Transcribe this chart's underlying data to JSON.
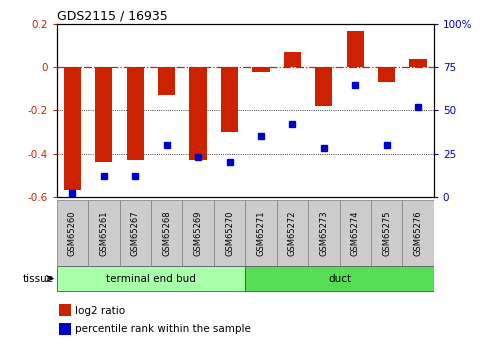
{
  "title": "GDS2115 / 16935",
  "samples": [
    "GSM65260",
    "GSM65261",
    "GSM65267",
    "GSM65268",
    "GSM65269",
    "GSM65270",
    "GSM65271",
    "GSM65272",
    "GSM65273",
    "GSM65274",
    "GSM65275",
    "GSM65276"
  ],
  "log2_ratio": [
    -0.57,
    -0.44,
    -0.43,
    -0.13,
    -0.43,
    -0.3,
    -0.02,
    0.07,
    -0.18,
    0.17,
    -0.07,
    0.04
  ],
  "percentile": [
    2,
    12,
    12,
    30,
    23,
    20,
    35,
    42,
    28,
    65,
    30,
    52
  ],
  "groups": [
    {
      "label": "terminal end bud",
      "start": 0,
      "end": 6,
      "color": "#AAFFAA"
    },
    {
      "label": "duct",
      "start": 6,
      "end": 12,
      "color": "#55DD55"
    }
  ],
  "bar_color": "#CC2200",
  "dot_color": "#0000CC",
  "ylim_left": [
    -0.6,
    0.2
  ],
  "ylim_right": [
    0,
    100
  ],
  "right_ticks": [
    0,
    25,
    50,
    75,
    100
  ],
  "right_tick_labels": [
    "0",
    "25",
    "50",
    "75",
    "100%"
  ],
  "left_ticks": [
    -0.6,
    -0.4,
    -0.2,
    0.0,
    0.2
  ],
  "left_tick_labels": [
    "-0.6",
    "-0.4",
    "-0.2",
    "0",
    "0.2"
  ],
  "tissue_label": "tissue",
  "legend_items": [
    {
      "color": "#CC2200",
      "label": "log2 ratio"
    },
    {
      "color": "#0000CC",
      "label": "percentile rank within the sample"
    }
  ],
  "sample_box_color": "#CCCCCC",
  "sample_box_edge": "#888888"
}
